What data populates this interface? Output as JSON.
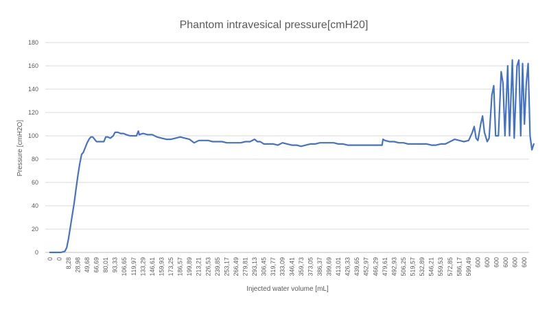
{
  "chart_data": {
    "type": "line",
    "title": "Phantom intravesical pressure[cmH20]",
    "xlabel": "Injected water volume [mL]",
    "ylabel": "Pressure [cmH2O]",
    "ylim": [
      0,
      180
    ],
    "yticks": [
      0,
      20,
      40,
      60,
      80,
      100,
      120,
      140,
      160,
      180
    ],
    "grid": true,
    "legend": "none",
    "colors": {
      "line": "#4472c4",
      "grid": "#d9d9d9",
      "text": "#595959"
    },
    "x_tick_labels": [
      "0",
      "0",
      "8,28",
      "28,98",
      "49,68",
      "66,69",
      "80,01",
      "93,33",
      "106,65",
      "119,97",
      "133,29",
      "146,61",
      "159,93",
      "173,25",
      "186,57",
      "199,89",
      "213,21",
      "226,53",
      "239,85",
      "253,17",
      "266,49",
      "279,81",
      "293,13",
      "306,45",
      "319,77",
      "333,09",
      "346,41",
      "359,73",
      "373,05",
      "386,37",
      "399,69",
      "413,01",
      "426,33",
      "439,65",
      "452,97",
      "466,29",
      "479,61",
      "492,93",
      "506,25",
      "519,57",
      "532,89",
      "546,21",
      "559,53",
      "572,85",
      "586,17",
      "599,49",
      "600",
      "600",
      "600",
      "600",
      "600",
      "600"
    ],
    "series": [
      {
        "color": "#4472c4",
        "points": [
          [
            0,
            0
          ],
          [
            1.2,
            0
          ],
          [
            1.6,
            1
          ],
          [
            1.8,
            4
          ],
          [
            2.0,
            12
          ],
          [
            2.2,
            22
          ],
          [
            2.4,
            32
          ],
          [
            2.6,
            42
          ],
          [
            2.8,
            54
          ],
          [
            3.0,
            66
          ],
          [
            3.2,
            76
          ],
          [
            3.4,
            84
          ],
          [
            3.6,
            86
          ],
          [
            3.8,
            90
          ],
          [
            4.0,
            94
          ],
          [
            4.2,
            97
          ],
          [
            4.4,
            99
          ],
          [
            4.6,
            99
          ],
          [
            4.8,
            97
          ],
          [
            5.0,
            95
          ],
          [
            5.4,
            95
          ],
          [
            5.8,
            95
          ],
          [
            6.0,
            99
          ],
          [
            6.2,
            99
          ],
          [
            6.5,
            98
          ],
          [
            6.8,
            100
          ],
          [
            7.0,
            103
          ],
          [
            7.3,
            103
          ],
          [
            7.6,
            102
          ],
          [
            7.9,
            102
          ],
          [
            8.2,
            101
          ],
          [
            8.6,
            100
          ],
          [
            9.0,
            100
          ],
          [
            9.3,
            100
          ],
          [
            9.5,
            104
          ],
          [
            9.6,
            101
          ],
          [
            10.0,
            102
          ],
          [
            10.5,
            101
          ],
          [
            11.0,
            101
          ],
          [
            11.5,
            99
          ],
          [
            12.0,
            98
          ],
          [
            12.5,
            97
          ],
          [
            13.0,
            97
          ],
          [
            13.5,
            98
          ],
          [
            14.0,
            99
          ],
          [
            14.5,
            98
          ],
          [
            15.0,
            97
          ],
          [
            15.5,
            94
          ],
          [
            16.0,
            96
          ],
          [
            16.5,
            96
          ],
          [
            17.0,
            96
          ],
          [
            17.5,
            95
          ],
          [
            18.0,
            95
          ],
          [
            18.5,
            95
          ],
          [
            19.0,
            94
          ],
          [
            19.5,
            94
          ],
          [
            20.0,
            94
          ],
          [
            20.5,
            94
          ],
          [
            21.0,
            95
          ],
          [
            21.5,
            95
          ],
          [
            22.0,
            97
          ],
          [
            22.3,
            95
          ],
          [
            22.6,
            95
          ],
          [
            23.0,
            93
          ],
          [
            23.5,
            93
          ],
          [
            24.0,
            93
          ],
          [
            24.5,
            92
          ],
          [
            25.0,
            94
          ],
          [
            25.5,
            93
          ],
          [
            26.0,
            92
          ],
          [
            26.5,
            92
          ],
          [
            27.0,
            91
          ],
          [
            27.5,
            92
          ],
          [
            28.0,
            93
          ],
          [
            28.5,
            93
          ],
          [
            29.0,
            94
          ],
          [
            29.5,
            94
          ],
          [
            30.0,
            94
          ],
          [
            30.5,
            94
          ],
          [
            31.0,
            93
          ],
          [
            31.5,
            93
          ],
          [
            32.0,
            92
          ],
          [
            32.5,
            92
          ],
          [
            33.0,
            92
          ],
          [
            33.5,
            92
          ],
          [
            34.0,
            92
          ],
          [
            34.5,
            92
          ],
          [
            35.0,
            92
          ],
          [
            35.5,
            92
          ],
          [
            35.7,
            92
          ],
          [
            35.8,
            97
          ],
          [
            36.0,
            96
          ],
          [
            36.5,
            95
          ],
          [
            37.0,
            95
          ],
          [
            37.5,
            94
          ],
          [
            38.0,
            94
          ],
          [
            38.5,
            93
          ],
          [
            39.0,
            93
          ],
          [
            39.5,
            93
          ],
          [
            40.0,
            93
          ],
          [
            40.5,
            93
          ],
          [
            41.0,
            92
          ],
          [
            41.5,
            92
          ],
          [
            42.0,
            93
          ],
          [
            42.5,
            93
          ],
          [
            43.0,
            95
          ],
          [
            43.5,
            97
          ],
          [
            44.0,
            96
          ],
          [
            44.5,
            95
          ],
          [
            45.0,
            96
          ],
          [
            45.4,
            103
          ],
          [
            45.6,
            108
          ],
          [
            45.8,
            98
          ],
          [
            46.0,
            96
          ],
          [
            46.3,
            110
          ],
          [
            46.5,
            117
          ],
          [
            46.7,
            103
          ],
          [
            47.0,
            95
          ],
          [
            47.2,
            98
          ],
          [
            47.5,
            135
          ],
          [
            47.7,
            143
          ],
          [
            47.9,
            100
          ],
          [
            48.2,
            100
          ],
          [
            48.5,
            155
          ],
          [
            48.7,
            145
          ],
          [
            48.9,
            100
          ],
          [
            49.2,
            160
          ],
          [
            49.4,
            100
          ],
          [
            49.7,
            165
          ],
          [
            49.9,
            98
          ],
          [
            50.2,
            160
          ],
          [
            50.4,
            165
          ],
          [
            50.6,
            100
          ],
          [
            50.8,
            162
          ],
          [
            51.0,
            110
          ],
          [
            51.2,
            145
          ],
          [
            51.4,
            162
          ],
          [
            51.6,
            100
          ],
          [
            51.8,
            88
          ],
          [
            52.0,
            93
          ]
        ]
      }
    ]
  }
}
